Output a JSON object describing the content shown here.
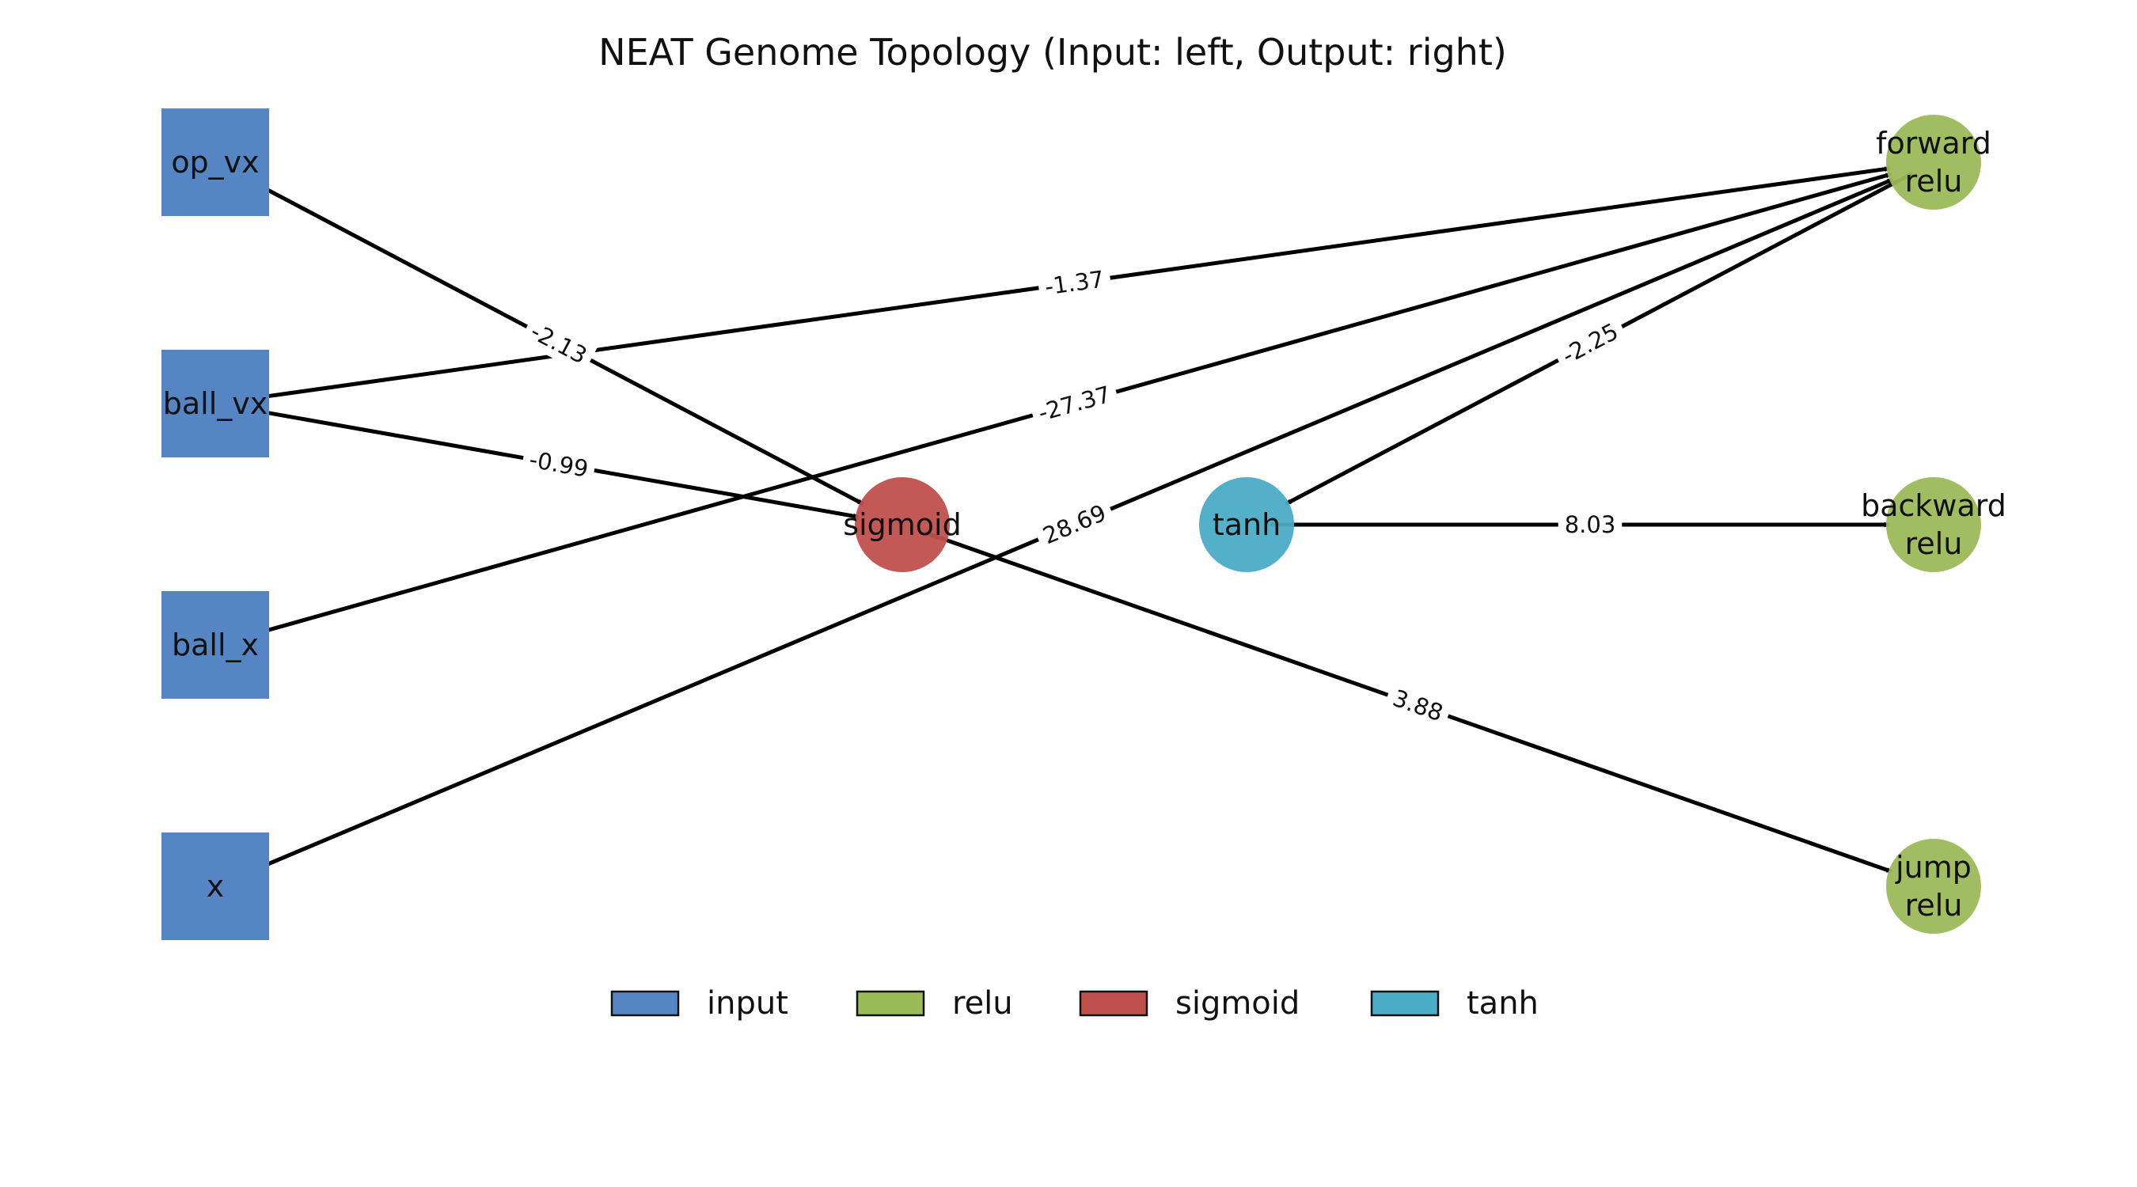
{
  "title": "NEAT Genome Topology (Input: left, Output: right)",
  "colors": {
    "input": "#5585c3",
    "relu": "#9bbb59",
    "sigmoid": "#c0504d",
    "tanh": "#4bacc6",
    "edge": "#000000"
  },
  "nodes": [
    {
      "id": "op_vx",
      "label": [
        "op_vx"
      ],
      "type": "input",
      "shape": "square"
    },
    {
      "id": "ball_vx",
      "label": [
        "ball_vx"
      ],
      "type": "input",
      "shape": "square"
    },
    {
      "id": "ball_x",
      "label": [
        "ball_x"
      ],
      "type": "input",
      "shape": "square"
    },
    {
      "id": "x",
      "label": [
        "x"
      ],
      "type": "input",
      "shape": "square"
    },
    {
      "id": "sigmoid",
      "label": [
        "sigmoid"
      ],
      "type": "sigmoid",
      "shape": "circle"
    },
    {
      "id": "tanh",
      "label": [
        "tanh"
      ],
      "type": "tanh",
      "shape": "circle"
    },
    {
      "id": "forward",
      "label": [
        "forward",
        "relu"
      ],
      "type": "relu",
      "shape": "circle"
    },
    {
      "id": "backward",
      "label": [
        "backward",
        "relu"
      ],
      "type": "relu",
      "shape": "circle"
    },
    {
      "id": "jump",
      "label": [
        "jump",
        "relu"
      ],
      "type": "relu",
      "shape": "circle"
    }
  ],
  "edges": [
    {
      "from": "op_vx",
      "to": "sigmoid",
      "weight": "-2.13"
    },
    {
      "from": "ball_vx",
      "to": "forward",
      "weight": "-1.37"
    },
    {
      "from": "ball_vx",
      "to": "sigmoid",
      "weight": "-0.99"
    },
    {
      "from": "ball_x",
      "to": "forward",
      "weight": "-27.37"
    },
    {
      "from": "x",
      "to": "forward",
      "weight": "28.69"
    },
    {
      "from": "forward",
      "to": "tanh",
      "weight": "-2.25"
    },
    {
      "from": "tanh",
      "to": "backward",
      "weight": "8.03"
    },
    {
      "from": "sigmoid",
      "to": "jump",
      "weight": "3.88"
    }
  ],
  "legend": [
    {
      "key": "input",
      "label": "input"
    },
    {
      "key": "relu",
      "label": "relu"
    },
    {
      "key": "sigmoid",
      "label": "sigmoid"
    },
    {
      "key": "tanh",
      "label": "tanh"
    }
  ]
}
